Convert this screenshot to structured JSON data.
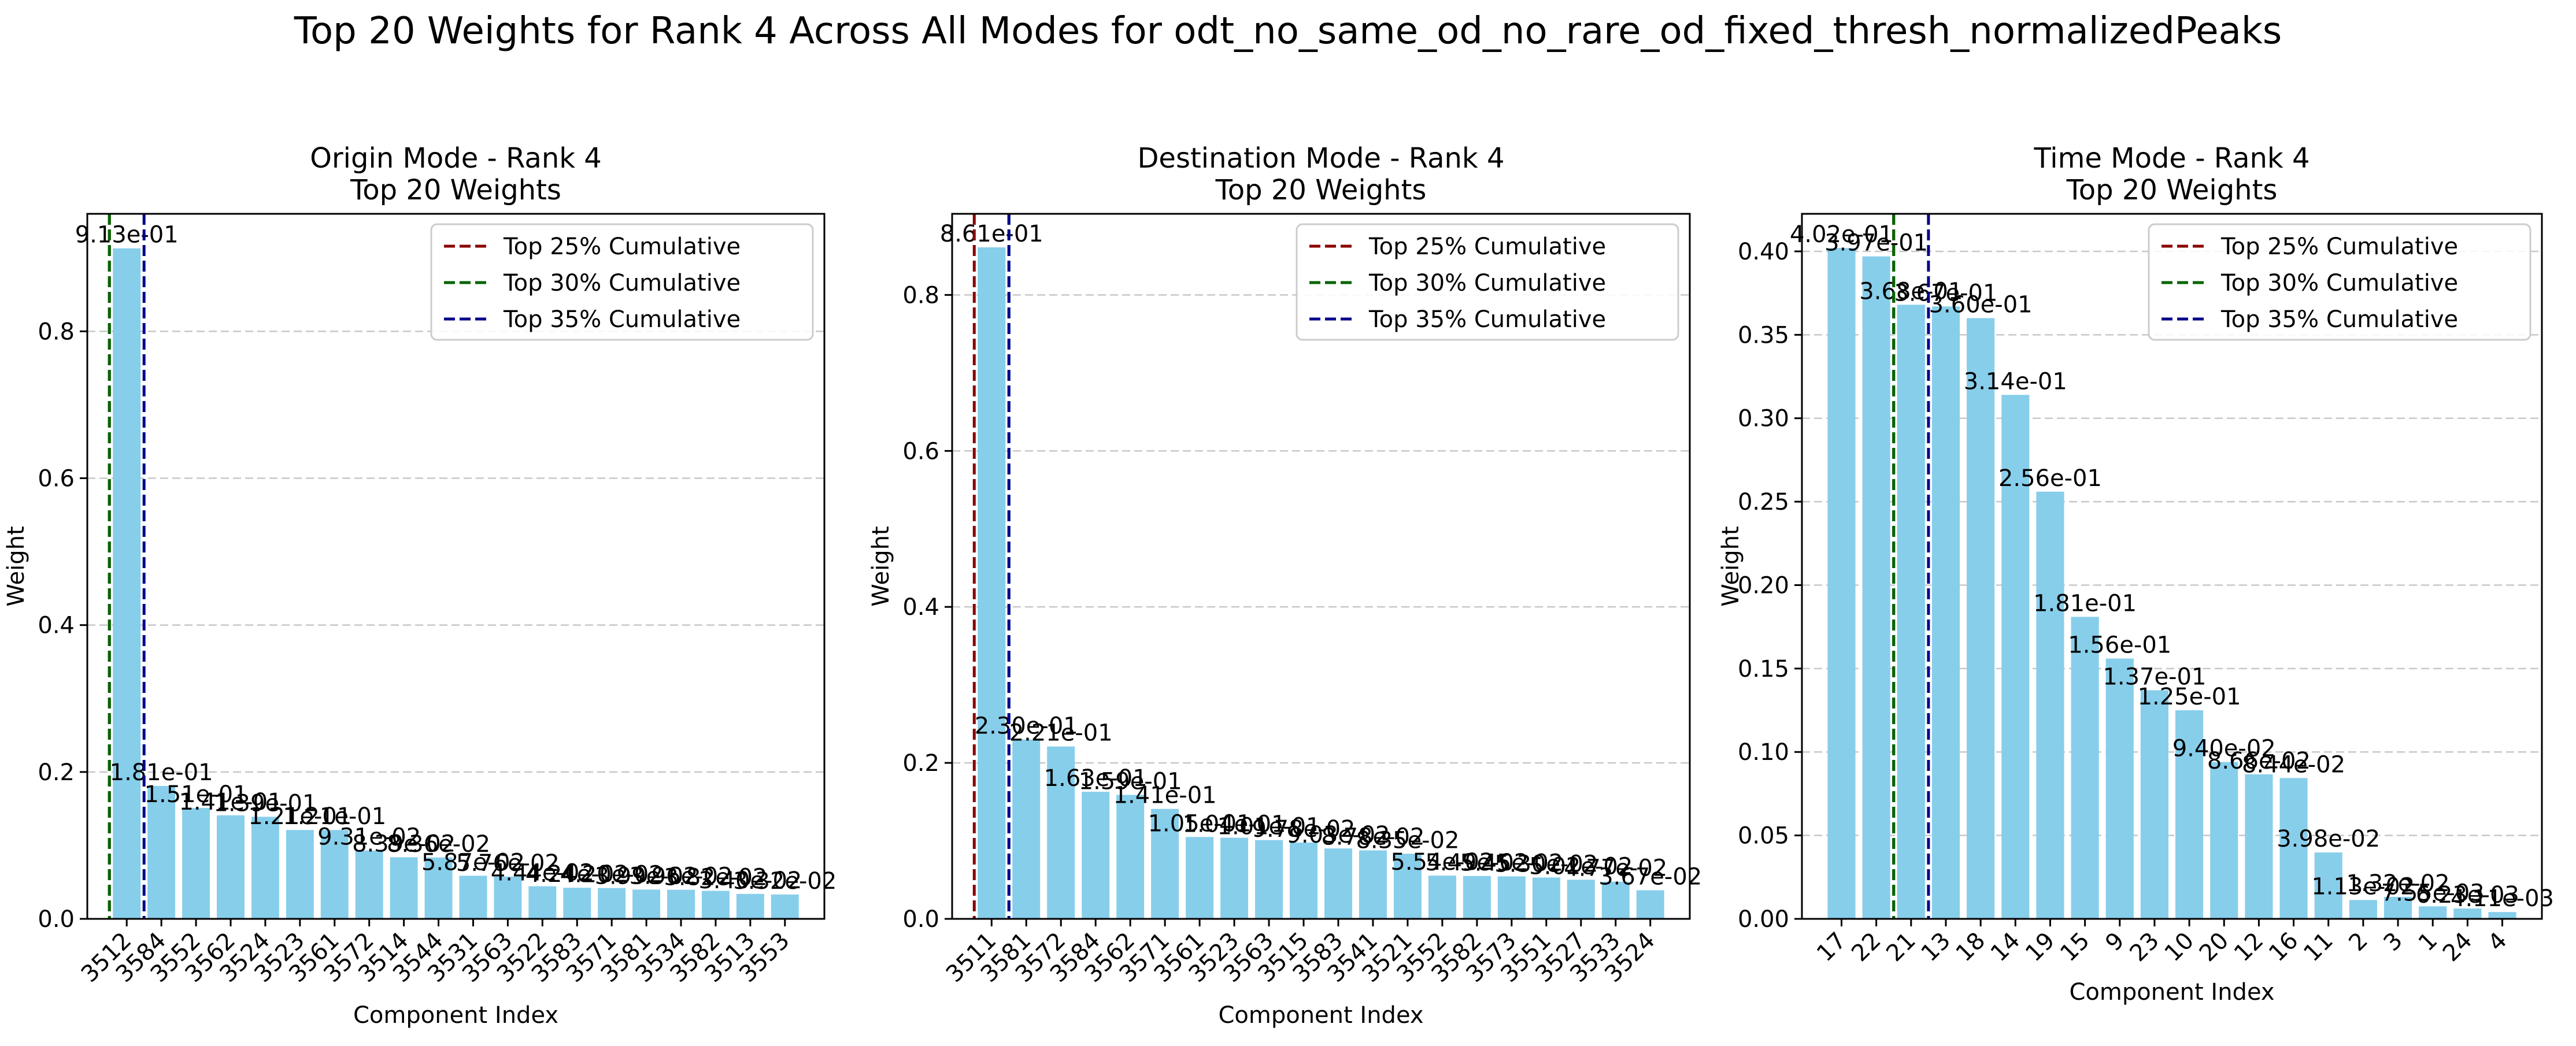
{
  "suptitle": "Top 20 Weights for Rank 4 Across All Modes for odt_no_same_od_no_rare_od_fixed_thresh_normalizedPeaks",
  "colors": {
    "bar": "#87ceeb",
    "grid": "#c8c8c8",
    "top25": "#8b0000",
    "top30": "#006400",
    "top35": "#00008b",
    "text": "#000000"
  },
  "chart_data": [
    {
      "type": "bar",
      "title_line1": "Origin Mode - Rank 4",
      "title_line2": "Top 20 Weights",
      "xlabel": "Component Index",
      "ylabel": "Weight",
      "ylim": [
        0,
        0.96
      ],
      "yticks": [
        "0.0",
        "0.2",
        "0.4",
        "0.6",
        "0.8"
      ],
      "ytick_values": [
        0,
        0.2,
        0.4,
        0.6,
        0.8
      ],
      "grid": "y",
      "legend_position": "top-right",
      "categories": [
        "3512",
        "3584",
        "3552",
        "3562",
        "3524",
        "3523",
        "3561",
        "3572",
        "3514",
        "3544",
        "3531",
        "3563",
        "3522",
        "3583",
        "3571",
        "3581",
        "3534",
        "3582",
        "3513",
        "3553"
      ],
      "values": [
        0.913,
        0.181,
        0.151,
        0.141,
        0.139,
        0.121,
        0.121,
        0.0931,
        0.0839,
        0.0836,
        0.0587,
        0.0576,
        0.0444,
        0.0424,
        0.042,
        0.0399,
        0.0396,
        0.0382,
        0.034,
        0.0332
      ],
      "labels": [
        "9.13e-01",
        "1.81e-01",
        "1.51e-01",
        "1.41e-01",
        "1.39e-01",
        "1.21e-01",
        "1.21e-01",
        "9.31e-02",
        "8.39e-02",
        "8.36e-02",
        "5.87e-02",
        "5.76e-02",
        "4.44e-02",
        "4.24e-02",
        "4.20e-02",
        "3.99e-02",
        "3.96e-02",
        "3.82e-02",
        "3.40e-02",
        "3.32e-02"
      ],
      "thresholds": [
        {
          "name": "Top 25% Cumulative",
          "position": -0.5
        },
        {
          "name": "Top 30% Cumulative",
          "position": -0.5
        },
        {
          "name": "Top 35% Cumulative",
          "position": 0.5
        }
      ]
    },
    {
      "type": "bar",
      "title_line1": "Destination Mode - Rank 4",
      "title_line2": "Top 20 Weights",
      "xlabel": "Component Index",
      "ylabel": "Weight",
      "ylim": [
        0,
        0.904
      ],
      "yticks": [
        "0.0",
        "0.2",
        "0.4",
        "0.6",
        "0.8"
      ],
      "ytick_values": [
        0,
        0.2,
        0.4,
        0.6,
        0.8
      ],
      "grid": "y",
      "legend_position": "top-right",
      "categories": [
        "3511",
        "3581",
        "3572",
        "3584",
        "3562",
        "3571",
        "3561",
        "3523",
        "3563",
        "3515",
        "3583",
        "3541",
        "3521",
        "3552",
        "3582",
        "3573",
        "3551",
        "3527",
        "3533",
        "3524"
      ],
      "values": [
        0.861,
        0.23,
        0.221,
        0.163,
        0.159,
        0.141,
        0.105,
        0.104,
        0.101,
        0.0978,
        0.0903,
        0.0878,
        0.0835,
        0.0554,
        0.0549,
        0.0545,
        0.053,
        0.0502,
        0.0477,
        0.0367
      ],
      "labels": [
        "8.61e-01",
        "2.30e-01",
        "2.21e-01",
        "1.63e-01",
        "1.59e-01",
        "1.41e-01",
        "1.05e-01",
        "1.04e-01",
        "1.01e-01",
        "9.78e-02",
        "9.03e-02",
        "8.78e-02",
        "8.35e-02",
        "5.54e-02",
        "5.49e-02",
        "5.45e-02",
        "5.30e-02",
        "5.02e-02",
        "4.77e-02",
        "3.67e-02"
      ],
      "thresholds": [
        {
          "name": "Top 25% Cumulative",
          "position": -0.5
        },
        {
          "name": "Top 30% Cumulative",
          "position": 0.5
        },
        {
          "name": "Top 35% Cumulative",
          "position": 0.5
        }
      ]
    },
    {
      "type": "bar",
      "title_line1": "Time Mode - Rank 4",
      "title_line2": "Top 20 Weights",
      "xlabel": "Component Index",
      "ylabel": "Weight",
      "ylim": [
        0,
        0.4225
      ],
      "yticks": [
        "0.00",
        "0.05",
        "0.10",
        "0.15",
        "0.20",
        "0.25",
        "0.30",
        "0.35",
        "0.40"
      ],
      "ytick_values": [
        0,
        0.05,
        0.1,
        0.15,
        0.2,
        0.25,
        0.3,
        0.35,
        0.4
      ],
      "grid": "y",
      "legend_position": "top-right",
      "categories": [
        "17",
        "22",
        "21",
        "13",
        "18",
        "14",
        "19",
        "15",
        "9",
        "23",
        "10",
        "20",
        "12",
        "16",
        "11",
        "2",
        "3",
        "1",
        "24",
        "4"
      ],
      "values": [
        0.402,
        0.397,
        0.368,
        0.367,
        0.36,
        0.314,
        0.256,
        0.181,
        0.156,
        0.137,
        0.125,
        0.094,
        0.0866,
        0.0844,
        0.0398,
        0.0113,
        0.0132,
        0.0075,
        0.0062,
        0.0041
      ],
      "labels": [
        "4.02e-01",
        "3.97e-01",
        "3.68e-01",
        "3.67e-01",
        "3.60e-01",
        "3.14e-01",
        "2.56e-01",
        "1.81e-01",
        "1.56e-01",
        "1.37e-01",
        "1.25e-01",
        "9.40e-02",
        "8.66e-02",
        "8.44e-02",
        "3.98e-02",
        "1.13e-02",
        "1.32e-02",
        "7.55e-03",
        "6.23e-03",
        "4.11e-03"
      ],
      "thresholds": [
        {
          "name": "Top 25% Cumulative",
          "position": 1.5
        },
        {
          "name": "Top 30% Cumulative",
          "position": 1.5
        },
        {
          "name": "Top 35% Cumulative",
          "position": 2.5
        }
      ]
    }
  ]
}
